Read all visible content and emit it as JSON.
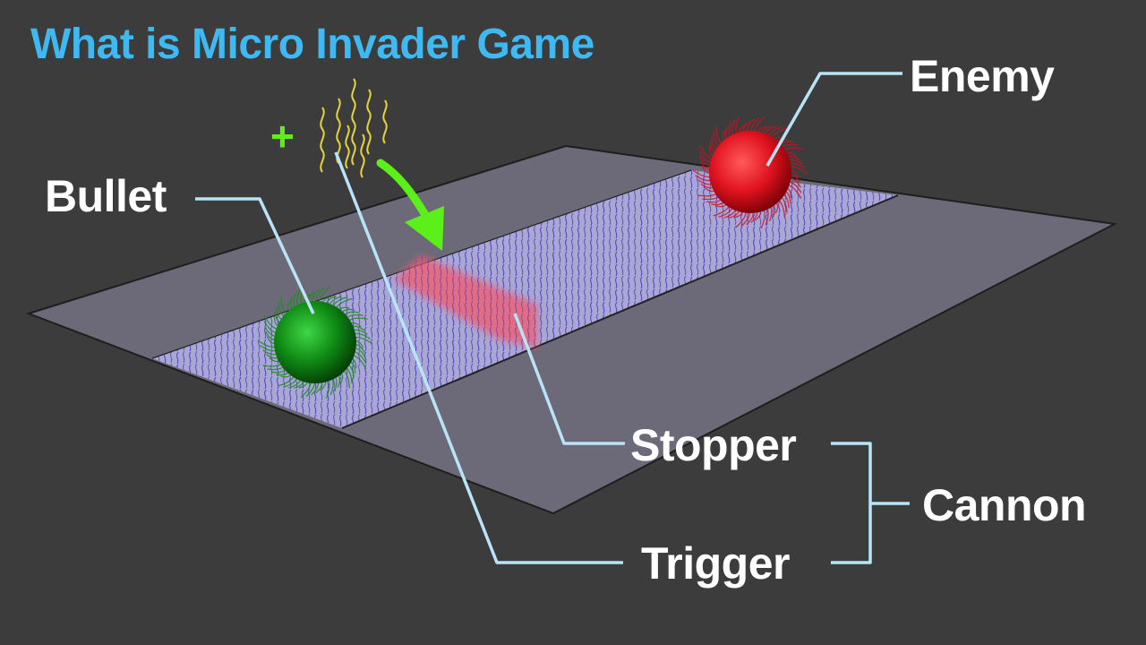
{
  "title": "What is Micro Invader Game",
  "labels": {
    "enemy": "Enemy",
    "bullet": "Bullet",
    "stopper": "Stopper",
    "trigger": "Trigger",
    "cannon": "Cannon"
  },
  "plus_sign": "+",
  "colors": {
    "background": "#3c3c3c",
    "title": "#3fb9f2",
    "label": "#ffffff",
    "leader_line": "#b9e3f7",
    "plate": "#6c6a78",
    "lane": "#aaa6d6",
    "fibers": "#2a2aa8",
    "enemy": "#e0131f",
    "bullet": "#0f8a14",
    "stopper": "#f05a6e",
    "trigger_strands": "#e6d33a",
    "arrow": "#5cf01a"
  },
  "icons": {
    "enemy": "red-fuzzy-sphere",
    "bullet": "green-fuzzy-sphere",
    "trigger": "yellow-dna-strands",
    "arrow": "curved-arrow-down"
  }
}
